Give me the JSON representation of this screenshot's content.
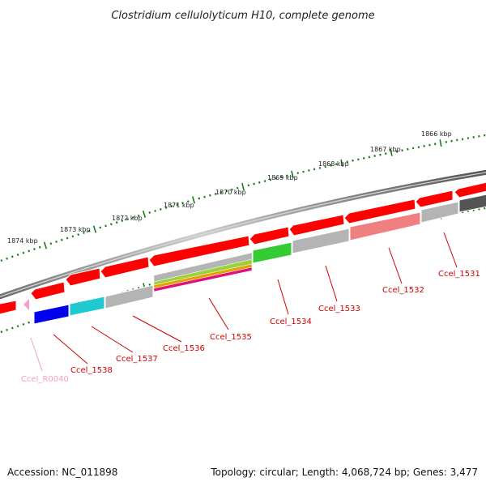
{
  "title": "Clostridium cellulolyticum H10, complete genome",
  "footer": {
    "accession": "Accession: NC_011898",
    "summary": "Topology: circular; Length: 4,068,724 bp; Genes: 3,477"
  },
  "ruler": {
    "ticks": [
      "1866 kbp",
      "1867 kbp",
      "1868 kbp",
      "1869 kbp",
      "1870 kbp",
      "1871 kbp",
      "1872 kbp",
      "1873 kbp",
      "1874 kbp"
    ]
  },
  "gene_labels": [
    "Ccel_1531",
    "Ccel_1532",
    "Ccel_1533",
    "Ccel_1534",
    "Ccel_1535",
    "Ccel_1536",
    "Ccel_1537",
    "Ccel_1538"
  ],
  "rna_labels": [
    "Ccel_R0040"
  ],
  "colors": {
    "forward": "#ff0000",
    "blue": "#0000ee",
    "cyan": "#20c8d0",
    "gray": "#b4b4b4",
    "dark_gray": "#555555",
    "green": "#33cc33",
    "salmon": "#f08080",
    "rna": "#f4a0c8",
    "label": "#d00000",
    "ruler_tick": "#1a7a1a"
  }
}
